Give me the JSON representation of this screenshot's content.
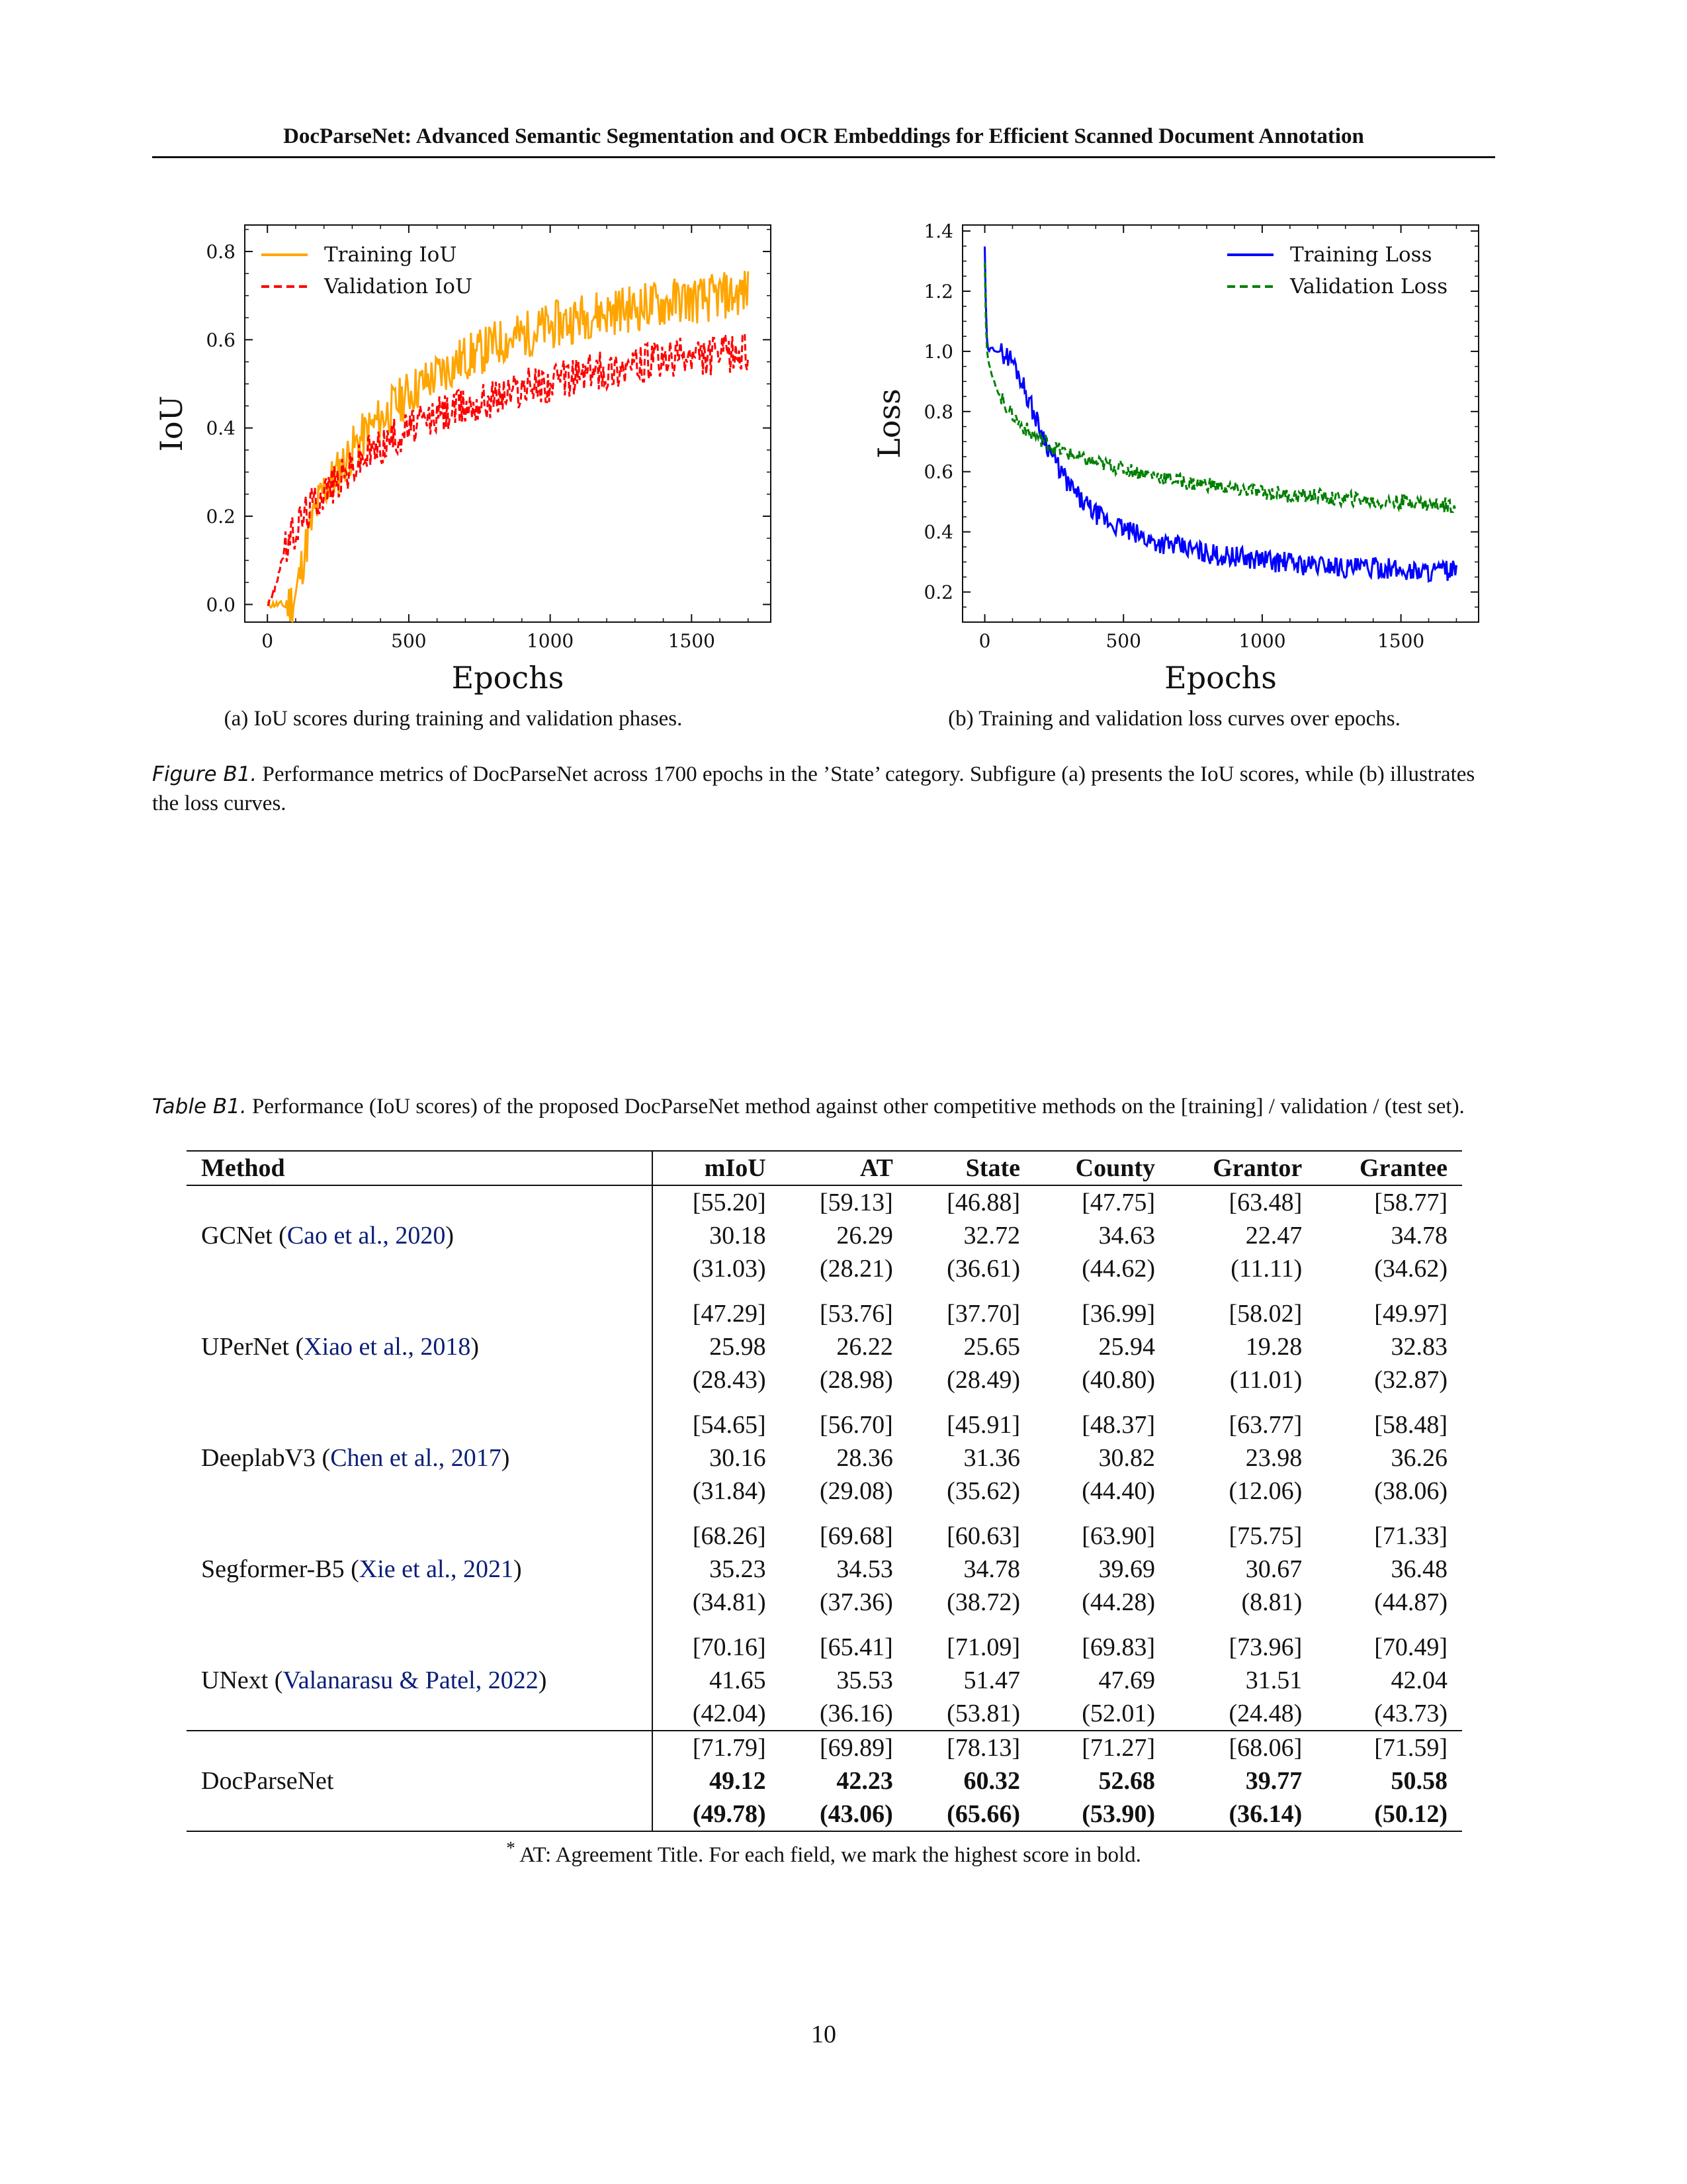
{
  "header": {
    "running_title": "DocParseNet: Advanced Semantic Segmentation and OCR Embeddings for Efficient Scanned Document Annotation"
  },
  "figure": {
    "subcaption_a": "(a) IoU scores during training and validation phases.",
    "subcaption_b": "(b) Training and validation loss curves over epochs.",
    "caption_label": "Figure B1.",
    "caption_text": " Performance metrics of DocParseNet across 1700 epochs in the ’State’ category. Subfigure (a) presents the IoU scores, while (b) illustrates the loss curves."
  },
  "chart_data": [
    {
      "type": "line",
      "title": "",
      "xlabel": "Epochs",
      "ylabel": "IoU",
      "xlim": [
        -80,
        1780
      ],
      "ylim": [
        -0.04,
        0.86
      ],
      "xticks": [
        "0",
        "500",
        "1000",
        "1500"
      ],
      "yticks": [
        "0.0",
        "0.2",
        "0.4",
        "0.6",
        "0.8"
      ],
      "legend_position": "top-left",
      "grid": false,
      "x": [
        0,
        25,
        50,
        75,
        100,
        125,
        150,
        175,
        200,
        250,
        300,
        350,
        400,
        450,
        500,
        550,
        600,
        650,
        700,
        750,
        800,
        850,
        900,
        950,
        1000,
        1050,
        1100,
        1150,
        1200,
        1250,
        1300,
        1350,
        1400,
        1450,
        1500,
        1550,
        1600,
        1650,
        1700
      ],
      "series": [
        {
          "name": "Training IoU",
          "color": "#ffa500",
          "style": "solid",
          "values": [
            0.0,
            0.0,
            0.0,
            0.0,
            0.02,
            0.1,
            0.17,
            0.22,
            0.26,
            0.3,
            0.35,
            0.39,
            0.42,
            0.45,
            0.48,
            0.5,
            0.52,
            0.54,
            0.56,
            0.57,
            0.59,
            0.6,
            0.61,
            0.62,
            0.63,
            0.64,
            0.65,
            0.66,
            0.66,
            0.67,
            0.67,
            0.68,
            0.68,
            0.69,
            0.69,
            0.69,
            0.7,
            0.7,
            0.71
          ]
        },
        {
          "name": "Validation IoU",
          "color": "#ff0000",
          "style": "dashed",
          "values": [
            0.0,
            0.03,
            0.1,
            0.14,
            0.17,
            0.2,
            0.22,
            0.24,
            0.26,
            0.28,
            0.31,
            0.34,
            0.36,
            0.38,
            0.4,
            0.41,
            0.43,
            0.44,
            0.45,
            0.46,
            0.47,
            0.48,
            0.49,
            0.5,
            0.5,
            0.51,
            0.52,
            0.53,
            0.53,
            0.54,
            0.54,
            0.55,
            0.55,
            0.56,
            0.56,
            0.56,
            0.57,
            0.57,
            0.57
          ]
        }
      ]
    },
    {
      "type": "line",
      "title": "",
      "xlabel": "Epochs",
      "ylabel": "Loss",
      "xlim": [
        -80,
        1780
      ],
      "ylim": [
        0.1,
        1.42
      ],
      "xticks": [
        "0",
        "500",
        "1000",
        "1500"
      ],
      "yticks": [
        "0.2",
        "0.4",
        "0.6",
        "0.8",
        "1.0",
        "1.2",
        "1.4"
      ],
      "legend_position": "top-right",
      "grid": false,
      "x": [
        0,
        5,
        10,
        25,
        50,
        75,
        100,
        125,
        150,
        175,
        200,
        250,
        300,
        350,
        400,
        450,
        500,
        550,
        600,
        650,
        700,
        750,
        800,
        850,
        900,
        950,
        1000,
        1050,
        1100,
        1150,
        1200,
        1250,
        1300,
        1350,
        1400,
        1450,
        1500,
        1550,
        1600,
        1650,
        1700
      ],
      "series": [
        {
          "name": "Training Loss",
          "color": "#0000ff",
          "style": "solid",
          "values": [
            1.35,
            1.1,
            1.0,
            1.01,
            1.0,
            0.99,
            0.97,
            0.92,
            0.86,
            0.8,
            0.74,
            0.64,
            0.56,
            0.5,
            0.46,
            0.43,
            0.41,
            0.39,
            0.37,
            0.36,
            0.35,
            0.34,
            0.33,
            0.32,
            0.32,
            0.31,
            0.31,
            0.3,
            0.3,
            0.29,
            0.29,
            0.29,
            0.28,
            0.28,
            0.28,
            0.28,
            0.27,
            0.27,
            0.27,
            0.27,
            0.27
          ]
        },
        {
          "name": "Validation Loss",
          "color": "#008000",
          "style": "dashed",
          "values": [
            1.3,
            1.05,
            0.98,
            0.92,
            0.86,
            0.82,
            0.79,
            0.76,
            0.74,
            0.72,
            0.71,
            0.68,
            0.66,
            0.64,
            0.63,
            0.62,
            0.61,
            0.6,
            0.59,
            0.58,
            0.57,
            0.56,
            0.56,
            0.55,
            0.54,
            0.54,
            0.53,
            0.53,
            0.52,
            0.52,
            0.52,
            0.51,
            0.51,
            0.51,
            0.5,
            0.5,
            0.5,
            0.5,
            0.49,
            0.49,
            0.49
          ]
        }
      ]
    }
  ],
  "table": {
    "caption_label": "Table B1.",
    "caption_text": " Performance (IoU scores) of the proposed DocParseNet method against other competitive methods on the [training] / validation / (test set).",
    "columns": [
      "Method",
      "mIoU",
      "AT",
      "State",
      "County",
      "Grantor",
      "Grantee"
    ],
    "rows": [
      {
        "method": "GCNet (",
        "cite": "Cao et al., 2020",
        "close": ")",
        "train": [
          "[55.20]",
          "[59.13]",
          "[46.88]",
          "[47.75]",
          "[63.48]",
          "[58.77]"
        ],
        "val": [
          "30.18",
          "26.29",
          "32.72",
          "34.63",
          "22.47",
          "34.78"
        ],
        "test": [
          "(31.03)",
          "(28.21)",
          "(36.61)",
          "(44.62)",
          "(11.11)",
          "(34.62)"
        ]
      },
      {
        "method": "UPerNet (",
        "cite": "Xiao et al., 2018",
        "close": ")",
        "train": [
          "[47.29]",
          "[53.76]",
          "[37.70]",
          "[36.99]",
          "[58.02]",
          "[49.97]"
        ],
        "val": [
          "25.98",
          "26.22",
          "25.65",
          "25.94",
          "19.28",
          "32.83"
        ],
        "test": [
          "(28.43)",
          "(28.98)",
          "(28.49)",
          "(40.80)",
          "(11.01)",
          "(32.87)"
        ]
      },
      {
        "method": "DeeplabV3 (",
        "cite": "Chen et al., 2017",
        "close": ")",
        "train": [
          "[54.65]",
          "[56.70]",
          "[45.91]",
          "[48.37]",
          "[63.77]",
          "[58.48]"
        ],
        "val": [
          "30.16",
          "28.36",
          "31.36",
          "30.82",
          "23.98",
          "36.26"
        ],
        "test": [
          "(31.84)",
          "(29.08)",
          "(35.62)",
          "(44.40)",
          "(12.06)",
          "(38.06)"
        ]
      },
      {
        "method": "Segformer-B5 (",
        "cite": "Xie et al., 2021",
        "close": ")",
        "train": [
          "[68.26]",
          "[69.68]",
          "[60.63]",
          "[63.90]",
          "[75.75]",
          "[71.33]"
        ],
        "val": [
          "35.23",
          "34.53",
          "34.78",
          "39.69",
          "30.67",
          "36.48"
        ],
        "test": [
          "(34.81)",
          "(37.36)",
          "(38.72)",
          "(44.28)",
          "(8.81)",
          "(44.87)"
        ]
      },
      {
        "method": "UNext (",
        "cite": "Valanarasu & Patel, 2022",
        "close": ")",
        "train": [
          "[70.16]",
          "[65.41]",
          "[71.09]",
          "[69.83]",
          "[73.96]",
          "[70.49]"
        ],
        "val": [
          "41.65",
          "35.53",
          "51.47",
          "47.69",
          "31.51",
          "42.04"
        ],
        "test": [
          "(42.04)",
          "(36.16)",
          "(53.81)",
          "(52.01)",
          "(24.48)",
          "(43.73)"
        ]
      },
      {
        "method": "DocParseNet",
        "cite": "",
        "close": "",
        "train": [
          "[71.79]",
          "[69.89]",
          "[78.13]",
          "[71.27]",
          "[68.06]",
          "[71.59]"
        ],
        "val": [
          "49.12",
          "42.23",
          "60.32",
          "52.68",
          "39.77",
          "50.58"
        ],
        "test": [
          "(49.78)",
          "(43.06)",
          "(65.66)",
          "(53.90)",
          "(36.14)",
          "(50.12)"
        ]
      }
    ],
    "footnote_mark": "*",
    "footnote_text": " AT: Agreement Title. For each field, we mark the highest score in bold."
  },
  "page_number": "10"
}
